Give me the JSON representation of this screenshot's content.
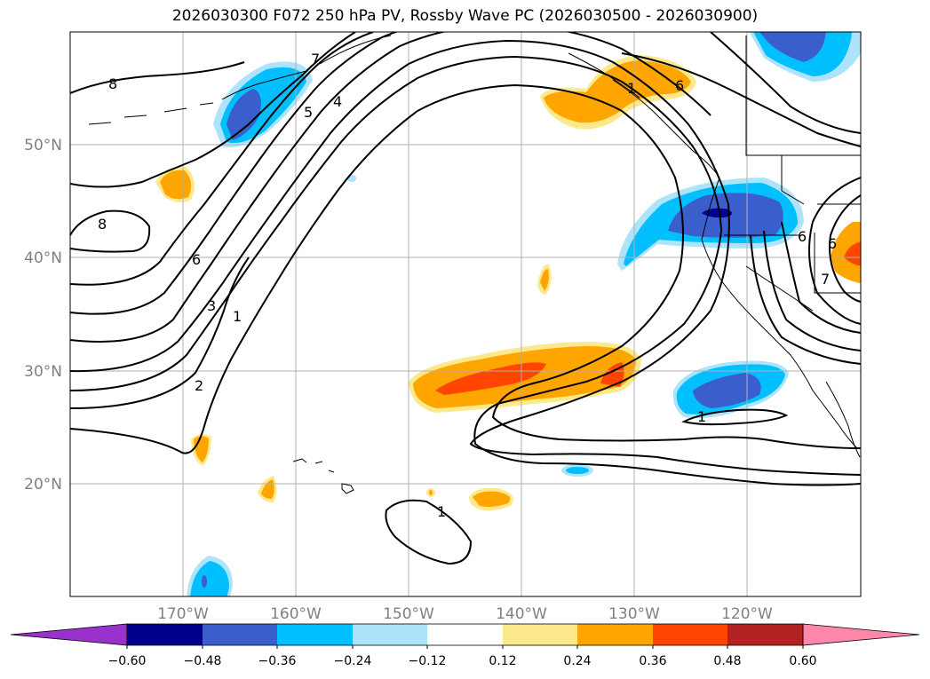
{
  "title": "2026030300 F072 250 hPa PV, Rossby Wave PC (2026030500 - 2026030900)",
  "map": {
    "lat_labels": [
      "50°N",
      "40°N",
      "30°N",
      "20°N"
    ],
    "lon_labels": [
      "170°W",
      "160°W",
      "150°W",
      "140°W",
      "130°W",
      "120°W"
    ],
    "contour_labels": [
      "8",
      "8",
      "7",
      "6",
      "5",
      "4",
      "3",
      "2",
      "1",
      "1",
      "1",
      "1",
      "6",
      "6",
      "7",
      "6"
    ]
  },
  "colorbar": {
    "levels": [
      "−0.60",
      "−0.48",
      "−0.36",
      "−0.24",
      "−0.12",
      "0.12",
      "0.24",
      "0.36",
      "0.48",
      "0.60"
    ],
    "colors": [
      "#9932CC",
      "#00008B",
      "#3A5FCD",
      "#00BFFF",
      "#ADE4FB",
      "#FFFFFF",
      "#FCE98C",
      "#FFA500",
      "#FF4500",
      "#B22222",
      "#FF88AA"
    ]
  }
}
